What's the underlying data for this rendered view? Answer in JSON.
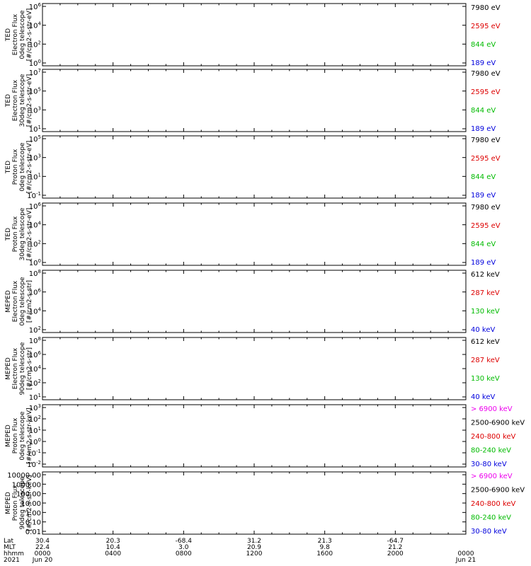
{
  "chart_data": {
    "type": "line",
    "panels": [
      {
        "ylabel_lines": [
          "TED",
          "Electron Flux",
          "0deg telescope",
          "[#/cm2-s-str-eV]"
        ],
        "y_ticks": [
          "10^0",
          "10^2",
          "10^4",
          "10^6"
        ],
        "legend": [
          {
            "text": "7980 eV",
            "color": "#000000"
          },
          {
            "text": "2595 eV",
            "color": "#dd0000"
          },
          {
            "text": "844 eV",
            "color": "#00bb00"
          },
          {
            "text": "189 eV",
            "color": "#0000dd"
          }
        ]
      },
      {
        "ylabel_lines": [
          "TED",
          "Electron Flux",
          "30deg telescope",
          "[#/cm2-s-str-eV]"
        ],
        "y_ticks": [
          "10^1",
          "10^3",
          "10^5",
          "10^7"
        ],
        "legend": [
          {
            "text": "7980 eV",
            "color": "#000000"
          },
          {
            "text": "2595 eV",
            "color": "#dd0000"
          },
          {
            "text": "844 eV",
            "color": "#00bb00"
          },
          {
            "text": "189 eV",
            "color": "#0000dd"
          }
        ]
      },
      {
        "ylabel_lines": [
          "TED",
          "Proton Flux",
          "0deg telescope",
          "[#/cm2-s-str-eV]"
        ],
        "y_ticks": [
          "10^-1",
          "10^1",
          "10^3",
          "10^5"
        ],
        "legend": [
          {
            "text": "7980 eV",
            "color": "#000000"
          },
          {
            "text": "2595 eV",
            "color": "#dd0000"
          },
          {
            "text": "844 eV",
            "color": "#00bb00"
          },
          {
            "text": "189 eV",
            "color": "#0000dd"
          }
        ]
      },
      {
        "ylabel_lines": [
          "TED",
          "Proton Flux",
          "30deg telescope",
          "[#/cm2-s-str-eV]"
        ],
        "y_ticks": [
          "10^0",
          "10^2",
          "10^4",
          "10^6"
        ],
        "legend": [
          {
            "text": "7980 eV",
            "color": "#000000"
          },
          {
            "text": "2595 eV",
            "color": "#dd0000"
          },
          {
            "text": "844 eV",
            "color": "#00bb00"
          },
          {
            "text": "189 eV",
            "color": "#0000dd"
          }
        ]
      },
      {
        "ylabel_lines": [
          "MEPED",
          "Electron Flux",
          "0deg telescope",
          "[#/cm2-s-str]"
        ],
        "y_ticks": [
          "10^2",
          "10^4",
          "10^6",
          "10^8"
        ],
        "legend": [
          {
            "text": "612 keV",
            "color": "#000000"
          },
          {
            "text": "287 keV",
            "color": "#dd0000"
          },
          {
            "text": "130 keV",
            "color": "#00bb00"
          },
          {
            "text": "40 keV",
            "color": "#0000dd"
          }
        ]
      },
      {
        "ylabel_lines": [
          "MEPED",
          "Electron Flux",
          "90deg telescope",
          "[#/cm2-s-str]"
        ],
        "y_ticks": [
          "10^1",
          "10^2",
          "10^4",
          "10^6",
          "10^8"
        ],
        "legend": [
          {
            "text": "612 keV",
            "color": "#000000"
          },
          {
            "text": "287 keV",
            "color": "#dd0000"
          },
          {
            "text": "130 keV",
            "color": "#00bb00"
          },
          {
            "text": "40 keV",
            "color": "#0000dd"
          }
        ]
      },
      {
        "ylabel_lines": [
          "MEPED",
          "Proton Flux",
          "0deg telescope",
          "[#/cm2-s-str-keV]"
        ],
        "y_ticks": [
          "10^-2",
          "10^-1",
          "10^0",
          "10^1",
          "10^2",
          "10^3"
        ],
        "legend": [
          {
            "text": "> 6900 keV",
            "color": "#ee00ee"
          },
          {
            "text": "2500-6900 keV",
            "color": "#000000"
          },
          {
            "text": "240-800 keV",
            "color": "#dd0000"
          },
          {
            "text": "80-240 keV",
            "color": "#00bb00"
          },
          {
            "text": "30-80 keV",
            "color": "#0000dd"
          }
        ]
      },
      {
        "ylabel_lines": [
          "MEPED",
          "Proton Flux",
          "90deg telescope",
          "[#/cm2-s-str-keV]"
        ],
        "y_ticks": [
          "0.01",
          "0.10",
          "1.00",
          "10.00",
          "100.00",
          "1000.00",
          "10000.00"
        ],
        "legend": [
          {
            "text": "> 6900 keV",
            "color": "#ee00ee"
          },
          {
            "text": "2500-6900 keV",
            "color": "#000000"
          },
          {
            "text": "240-800 keV",
            "color": "#dd0000"
          },
          {
            "text": "80-240 keV",
            "color": "#00bb00"
          },
          {
            "text": "30-80 keV",
            "color": "#0000dd"
          }
        ]
      }
    ],
    "x_axis": {
      "row_labels": [
        "Lat",
        "MLT",
        "hhmm",
        "2021"
      ],
      "ticks": [
        {
          "lat": "30.4",
          "mlt": "22.4",
          "hhmm": "0000",
          "date": "Jun 20"
        },
        {
          "lat": "20.3",
          "mlt": "10.4",
          "hhmm": "0400",
          "date": ""
        },
        {
          "lat": "-68.4",
          "mlt": "3.0",
          "hhmm": "0800",
          "date": ""
        },
        {
          "lat": "31.2",
          "mlt": "20.9",
          "hhmm": "1200",
          "date": ""
        },
        {
          "lat": "21.3",
          "mlt": "9.8",
          "hhmm": "1600",
          "date": ""
        },
        {
          "lat": "-64.7",
          "mlt": "21.2",
          "hhmm": "2000",
          "date": ""
        },
        {
          "lat": "",
          "mlt": "",
          "hhmm": "0000",
          "date": "Jun 21"
        }
      ],
      "range_hours": [
        0,
        24
      ]
    }
  }
}
